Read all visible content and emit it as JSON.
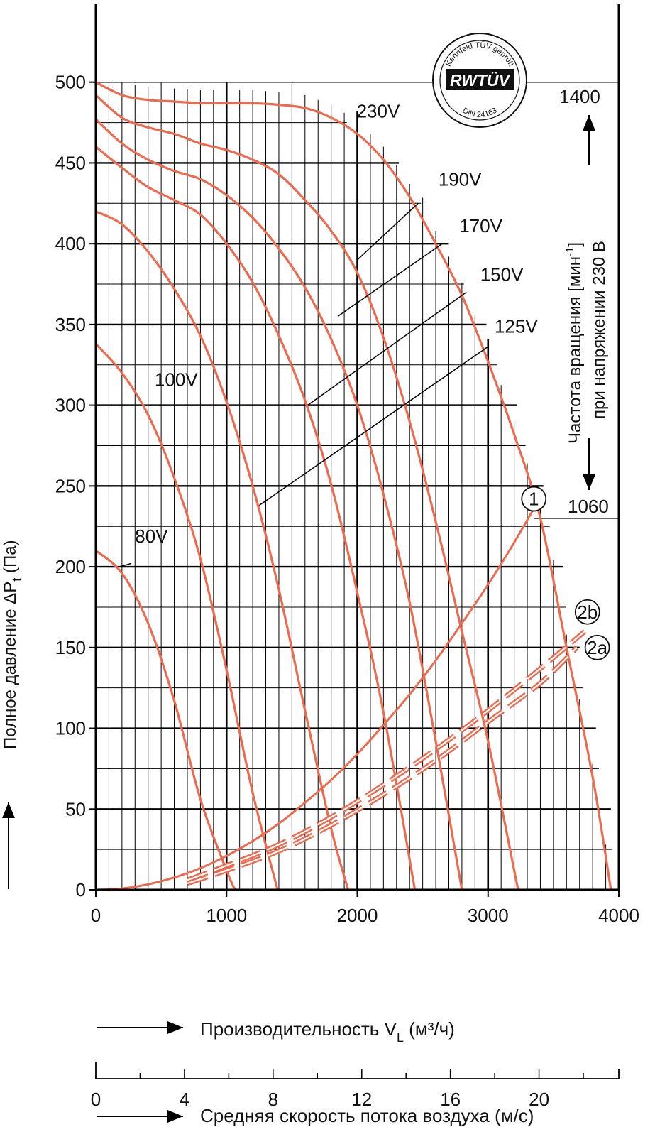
{
  "chart_data": {
    "type": "line",
    "xlabel": "Производительность V",
    "xlabel_sub": "L",
    "xlabel_unit": " (м³/ч)",
    "xlim": [
      0,
      4000
    ],
    "x_ticks": [
      "0",
      "1000",
      "2000",
      "3000",
      "4000"
    ],
    "ylabel": "Полное давление ΔP",
    "ylabel_sub": "t",
    "ylabel_unit": " (Па)",
    "ylim": [
      0,
      500
    ],
    "y_ticks": [
      "0",
      "50",
      "100",
      "150",
      "200",
      "250",
      "300",
      "350",
      "400",
      "450",
      "500"
    ],
    "grid": true,
    "speed_axis": {
      "label": "Средняя скорость потока воздуха (м/с)",
      "ticks": [
        "0",
        "4",
        "8",
        "12",
        "16",
        "20"
      ],
      "range": [
        0,
        23.6
      ]
    },
    "right_axis": {
      "label_line1": "Частота вращения [мин",
      "label_sup": "-1",
      "label_line1_end": "]",
      "label_line2": "при напряжении 230 В",
      "top_value": "1400",
      "top_pressure": 500,
      "bottom_value": "1060",
      "bottom_pressure": 230
    },
    "stamp": {
      "top_text": "Kennfeld TÜV geprüft",
      "logo": "RWTÜV",
      "bottom_text": "DIN 24163"
    },
    "series": [
      {
        "name": "230V",
        "label_at": [
          1995,
          478
        ],
        "leader_from": [
          1995,
          478
        ],
        "leader_to": [
          1995,
          478
        ],
        "x": [
          0,
          200,
          400,
          600,
          800,
          1000,
          1200,
          1400,
          1600,
          1800,
          2000,
          2200,
          2400,
          2600,
          2800,
          3000,
          3200,
          3400,
          3600,
          3800,
          3940
        ],
        "y": [
          500,
          492,
          489,
          488,
          487,
          487,
          487,
          486,
          484,
          478,
          468,
          452,
          429,
          400,
          368,
          327,
          282,
          230,
          150,
          70,
          0
        ]
      },
      {
        "name": "190V",
        "label_at": [
          2620,
          436
        ],
        "leader_from": [
          2465,
          425
        ],
        "leader_to": [
          2000,
          390
        ],
        "x": [
          0,
          200,
          400,
          600,
          800,
          1000,
          1200,
          1400,
          1600,
          1800,
          2000,
          2200,
          2400,
          2600,
          2800,
          3000,
          3200,
          3230
        ],
        "y": [
          492,
          478,
          472,
          468,
          462,
          458,
          452,
          443,
          427,
          408,
          382,
          342,
          290,
          228,
          160,
          92,
          12,
          0
        ]
      },
      {
        "name": "170V",
        "label_at": [
          2780,
          407
        ],
        "leader_from": [
          2650,
          400
        ],
        "leader_to": [
          1850,
          355
        ],
        "x": [
          0,
          200,
          400,
          600,
          800,
          1000,
          1200,
          1400,
          1600,
          1800,
          2000,
          2200,
          2400,
          2600,
          2800
        ],
        "y": [
          477,
          462,
          452,
          445,
          440,
          430,
          416,
          397,
          373,
          341,
          300,
          245,
          178,
          92,
          0
        ]
      },
      {
        "name": "150V",
        "label_at": [
          2940,
          377
        ],
        "leader_from": [
          2835,
          370
        ],
        "leader_to": [
          1620,
          300
        ],
        "x": [
          0,
          200,
          400,
          600,
          800,
          1000,
          1200,
          1400,
          1600,
          1800,
          2000,
          2200,
          2440
        ],
        "y": [
          460,
          447,
          435,
          427,
          418,
          400,
          376,
          343,
          303,
          251,
          184,
          110,
          0
        ]
      },
      {
        "name": "125V",
        "label_at": [
          3050,
          345
        ],
        "leader_from": [
          2995,
          336
        ],
        "leader_to": [
          1250,
          238
        ],
        "x": [
          0,
          200,
          400,
          600,
          800,
          1000,
          1200,
          1400,
          1600,
          1800,
          1930
        ],
        "y": [
          420,
          412,
          395,
          372,
          343,
          302,
          250,
          186,
          111,
          38,
          0
        ]
      },
      {
        "name": "100V",
        "label_at": [
          450,
          312
        ],
        "leader_from": [
          460,
          300
        ],
        "leader_to": [
          430,
          300
        ],
        "x": [
          0,
          200,
          400,
          600,
          800,
          1000,
          1200,
          1390
        ],
        "y": [
          338,
          320,
          294,
          255,
          205,
          136,
          60,
          0
        ]
      },
      {
        "name": "80V",
        "label_at": [
          300,
          215
        ],
        "leader_from": [
          270,
          202
        ],
        "leader_to": [
          180,
          200
        ],
        "x": [
          0,
          200,
          400,
          600,
          800,
          1000,
          1065
        ],
        "y": [
          210,
          196,
          165,
          117,
          56,
          12,
          0
        ]
      }
    ],
    "system_curves": [
      {
        "name": "1",
        "style": "solid",
        "x": [
          0,
          200,
          400,
          600,
          800,
          1000,
          1200,
          1400,
          1600,
          1800,
          2000,
          2200,
          2400,
          2600,
          2800,
          3000,
          3200,
          3350
        ],
        "y": [
          0,
          0.8,
          3.4,
          7.6,
          13.4,
          21,
          30.2,
          41,
          54,
          68,
          84,
          102,
          121,
          142,
          165,
          189,
          215,
          236
        ]
      },
      {
        "name": "2a",
        "style": "double-dashed",
        "x": [
          700,
          1000,
          1400,
          1800,
          2200,
          2600,
          3000,
          3400,
          3680
        ],
        "y": [
          4,
          12,
          24,
          40,
          59,
          80,
          104,
          128,
          150
        ]
      },
      {
        "name": "2b",
        "style": "double-dashed",
        "x": [
          700,
          1000,
          1400,
          1800,
          2200,
          2600,
          3000,
          3400,
          3740
        ],
        "y": [
          6,
          15,
          28,
          45,
          65,
          87,
          111,
          137,
          160
        ]
      }
    ],
    "markers": [
      {
        "name": "1",
        "at": [
          3350,
          242
        ]
      },
      {
        "name": "2b",
        "at": [
          3760,
          172
        ]
      },
      {
        "name": "2a",
        "at": [
          3835,
          150
        ]
      }
    ],
    "colors": {
      "curve": "#ec6a4f",
      "grid": "#000000",
      "axis": "#000000"
    }
  }
}
